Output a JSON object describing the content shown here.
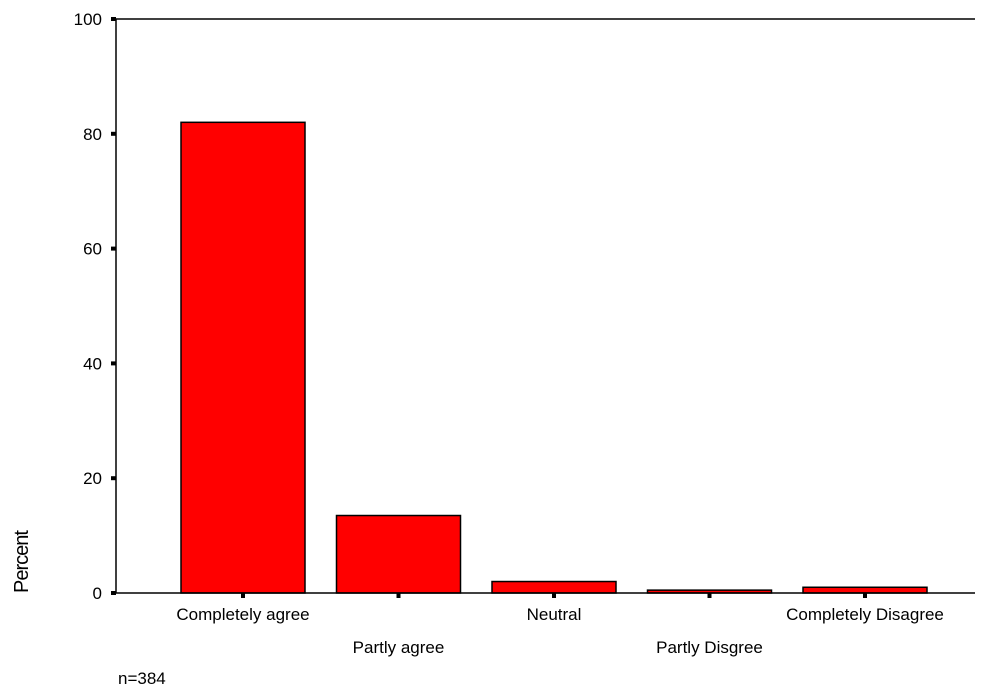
{
  "chart_data": {
    "type": "bar",
    "categories": [
      "Completely agree",
      "Partly agree",
      "Neutral",
      "Partly Disgree",
      "Completely Disagree"
    ],
    "values": [
      82,
      13.5,
      2,
      0.5,
      1
    ],
    "ylabel": "Percent",
    "xlabel": "",
    "ylim": [
      0,
      100
    ],
    "yticks": [
      0,
      20,
      40,
      60,
      80,
      100
    ],
    "grid": false,
    "bar_color": "#ff0000",
    "bar_edge_color": "#000000"
  },
  "note": "n=384"
}
